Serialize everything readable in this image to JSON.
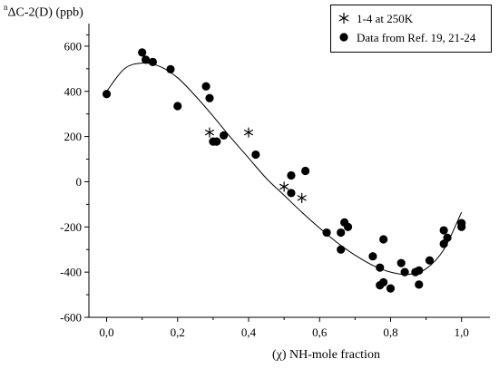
{
  "chart_data": {
    "type": "scatter",
    "ylabel": "ΔC-2(D) (ppb)",
    "ylabel_superscript": "n",
    "xlabel": "(χ) NH-mole fraction",
    "xlim": [
      -0.05,
      1.08
    ],
    "ylim": [
      -600,
      700
    ],
    "x_ticks": [
      0.0,
      0.2,
      0.4,
      0.6,
      0.8,
      1.0
    ],
    "x_tick_labels": [
      "0,0",
      "0,2",
      "0,4",
      "0,6",
      "0,8",
      "1,0"
    ],
    "y_ticks": [
      -600,
      -400,
      -200,
      0,
      200,
      400,
      600
    ],
    "y_tick_labels": [
      "-600",
      "-400",
      "-200",
      "0",
      "200",
      "400",
      "600"
    ],
    "grid": false,
    "legend_position": "top-right",
    "series": [
      {
        "name": "1-4 at 250K",
        "marker": "asterisk",
        "points": [
          [
            0.29,
            218
          ],
          [
            0.4,
            218
          ],
          [
            0.5,
            -22
          ],
          [
            0.55,
            -72
          ]
        ]
      },
      {
        "name": "Data from Ref. 19, 21-24",
        "marker": "filled-circle",
        "points": [
          [
            0.0,
            388
          ],
          [
            0.1,
            572
          ],
          [
            0.11,
            540
          ],
          [
            0.13,
            530
          ],
          [
            0.18,
            498
          ],
          [
            0.2,
            335
          ],
          [
            0.28,
            422
          ],
          [
            0.29,
            370
          ],
          [
            0.3,
            178
          ],
          [
            0.31,
            178
          ],
          [
            0.33,
            205
          ],
          [
            0.42,
            120
          ],
          [
            0.52,
            28
          ],
          [
            0.52,
            -50
          ],
          [
            0.56,
            48
          ],
          [
            0.62,
            -225
          ],
          [
            0.66,
            -300
          ],
          [
            0.66,
            -225
          ],
          [
            0.67,
            -180
          ],
          [
            0.68,
            -200
          ],
          [
            0.75,
            -330
          ],
          [
            0.77,
            -380
          ],
          [
            0.77,
            -458
          ],
          [
            0.78,
            -445
          ],
          [
            0.78,
            -255
          ],
          [
            0.8,
            -472
          ],
          [
            0.83,
            -360
          ],
          [
            0.84,
            -400
          ],
          [
            0.87,
            -400
          ],
          [
            0.88,
            -393
          ],
          [
            0.88,
            -455
          ],
          [
            0.91,
            -348
          ],
          [
            0.95,
            -275
          ],
          [
            0.95,
            -215
          ],
          [
            0.96,
            -248
          ],
          [
            1.0,
            -183
          ],
          [
            1.0,
            -200
          ]
        ]
      },
      {
        "name": "fit",
        "type": "line",
        "points": [
          [
            0.0,
            400
          ],
          [
            0.05,
            500
          ],
          [
            0.1,
            525
          ],
          [
            0.15,
            510
          ],
          [
            0.2,
            460
          ],
          [
            0.25,
            380
          ],
          [
            0.3,
            290
          ],
          [
            0.35,
            195
          ],
          [
            0.4,
            105
          ],
          [
            0.45,
            15
          ],
          [
            0.5,
            -60
          ],
          [
            0.55,
            -135
          ],
          [
            0.6,
            -205
          ],
          [
            0.65,
            -270
          ],
          [
            0.7,
            -325
          ],
          [
            0.75,
            -370
          ],
          [
            0.8,
            -400
          ],
          [
            0.85,
            -410
          ],
          [
            0.9,
            -385
          ],
          [
            0.95,
            -300
          ],
          [
            1.0,
            -135
          ]
        ]
      }
    ]
  }
}
